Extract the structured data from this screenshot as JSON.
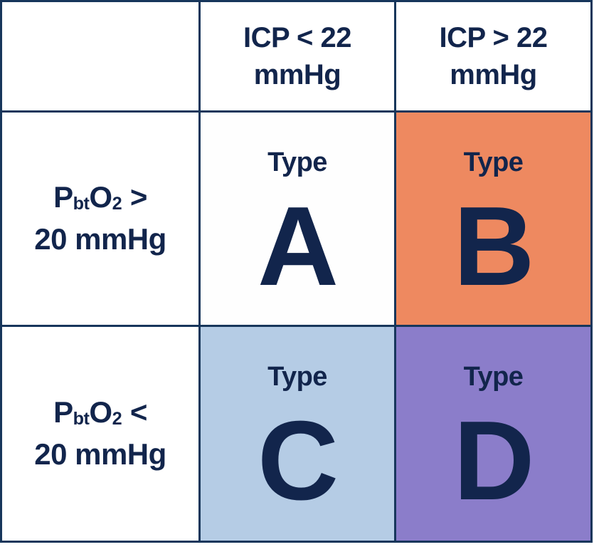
{
  "figure": {
    "title_semantic": "ICP vs PbtO2 classification matrix",
    "colors": {
      "border": "#17365B",
      "text": "#12254C",
      "cell_a_bg": "#FEFEFE",
      "cell_b_bg": "#EE8960",
      "cell_c_bg": "#B5CCE5",
      "cell_d_bg": "#8B7DCA"
    },
    "columns": [
      {
        "label_line1": "ICP < 22",
        "label_line2": "mmHg"
      },
      {
        "label_line1": "ICP > 22",
        "label_line2": "mmHg"
      }
    ],
    "rows": [
      {
        "p": "P",
        "p_sub": "bt",
        "o": "O",
        "o_sub": "2",
        "op": ">",
        "line2": "20 mmHg"
      },
      {
        "p": "P",
        "p_sub": "bt",
        "o": "O",
        "o_sub": "2",
        "op": "<",
        "line2": "20 mmHg"
      }
    ],
    "cells": [
      {
        "label": "Type",
        "letter": "A",
        "bg": "#FEFEFE"
      },
      {
        "label": "Type",
        "letter": "B",
        "bg": "#EE8960"
      },
      {
        "label": "Type",
        "letter": "C",
        "bg": "#B5CCE5"
      },
      {
        "label": "Type",
        "letter": "D",
        "bg": "#8B7DCA"
      }
    ]
  }
}
